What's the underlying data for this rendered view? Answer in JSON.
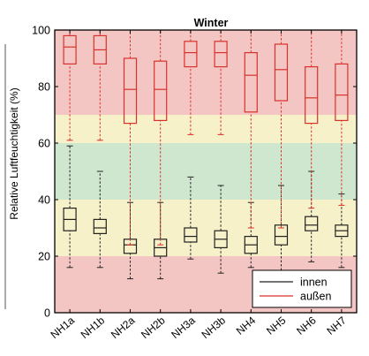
{
  "chart_data": {
    "type": "box",
    "title": "Winter",
    "xlabel": "",
    "ylabel": "Relative Luftfeuchtigkeit (%)",
    "ylim": [
      0,
      100
    ],
    "yticks": [
      0,
      20,
      40,
      60,
      80,
      100
    ],
    "categories": [
      "NH1a",
      "NH1b",
      "NH2a",
      "NH2b",
      "NH3a",
      "NH3b",
      "NH4",
      "NH5",
      "NH6",
      "NH7"
    ],
    "bands": [
      {
        "from": 0,
        "to": 20,
        "color": "#f4c6c3"
      },
      {
        "from": 20,
        "to": 30,
        "color": "#f7f1c9"
      },
      {
        "from": 30,
        "to": 40,
        "color": "#f7f1c9"
      },
      {
        "from": 40,
        "to": 60,
        "color": "#cfe6cf"
      },
      {
        "from": 60,
        "to": 70,
        "color": "#f7f1c9"
      },
      {
        "from": 70,
        "to": 100,
        "color": "#f4c6c3"
      }
    ],
    "series": [
      {
        "name": "innen",
        "color": "#222222",
        "boxes": [
          {
            "whisker_low": 16,
            "q1": 29,
            "median": 33,
            "q3": 37,
            "whisker_high": 59
          },
          {
            "whisker_low": 16,
            "q1": 28,
            "median": 30,
            "q3": 33,
            "whisker_high": 50
          },
          {
            "whisker_low": 12,
            "q1": 21,
            "median": 24,
            "q3": 26,
            "whisker_high": 39
          },
          {
            "whisker_low": 12,
            "q1": 20,
            "median": 23,
            "q3": 26,
            "whisker_high": 39
          },
          {
            "whisker_low": 19,
            "q1": 25,
            "median": 27,
            "q3": 30,
            "whisker_high": 48
          },
          {
            "whisker_low": 14,
            "q1": 23,
            "median": 26,
            "q3": 29,
            "whisker_high": 45
          },
          {
            "whisker_low": 16,
            "q1": 21,
            "median": 24,
            "q3": 27,
            "whisker_high": 39
          },
          {
            "whisker_low": 15,
            "q1": 24,
            "median": 27,
            "q3": 31,
            "whisker_high": 45
          },
          {
            "whisker_low": 18,
            "q1": 29,
            "median": 31,
            "q3": 34,
            "whisker_high": 50
          },
          {
            "whisker_low": 16,
            "q1": 27,
            "median": 29,
            "q3": 31,
            "whisker_high": 42
          }
        ]
      },
      {
        "name": "außen",
        "color": "#d9312b",
        "boxes": [
          {
            "whisker_low": 61,
            "q1": 88,
            "median": 94,
            "q3": 98,
            "whisker_high": 100
          },
          {
            "whisker_low": 61,
            "q1": 88,
            "median": 93,
            "q3": 98,
            "whisker_high": 100
          },
          {
            "whisker_low": 24,
            "q1": 67,
            "median": 79,
            "q3": 90,
            "whisker_high": 100
          },
          {
            "whisker_low": 24,
            "q1": 68,
            "median": 79,
            "q3": 89,
            "whisker_high": 100
          },
          {
            "whisker_low": 63,
            "q1": 87,
            "median": 92,
            "q3": 96,
            "whisker_high": 100
          },
          {
            "whisker_low": 63,
            "q1": 87,
            "median": 92,
            "q3": 96,
            "whisker_high": 100
          },
          {
            "whisker_low": 30,
            "q1": 71,
            "median": 84,
            "q3": 92,
            "whisker_high": 100
          },
          {
            "whisker_low": 30,
            "q1": 75,
            "median": 86,
            "q3": 95,
            "whisker_high": 100
          },
          {
            "whisker_low": 37,
            "q1": 67,
            "median": 76,
            "q3": 87,
            "whisker_high": 100
          },
          {
            "whisker_low": 38,
            "q1": 68,
            "median": 77,
            "q3": 88,
            "whisker_high": 100
          }
        ]
      }
    ],
    "legend": {
      "position": "bottom-right",
      "entries": [
        "innen",
        "außen"
      ]
    },
    "grid": false
  }
}
